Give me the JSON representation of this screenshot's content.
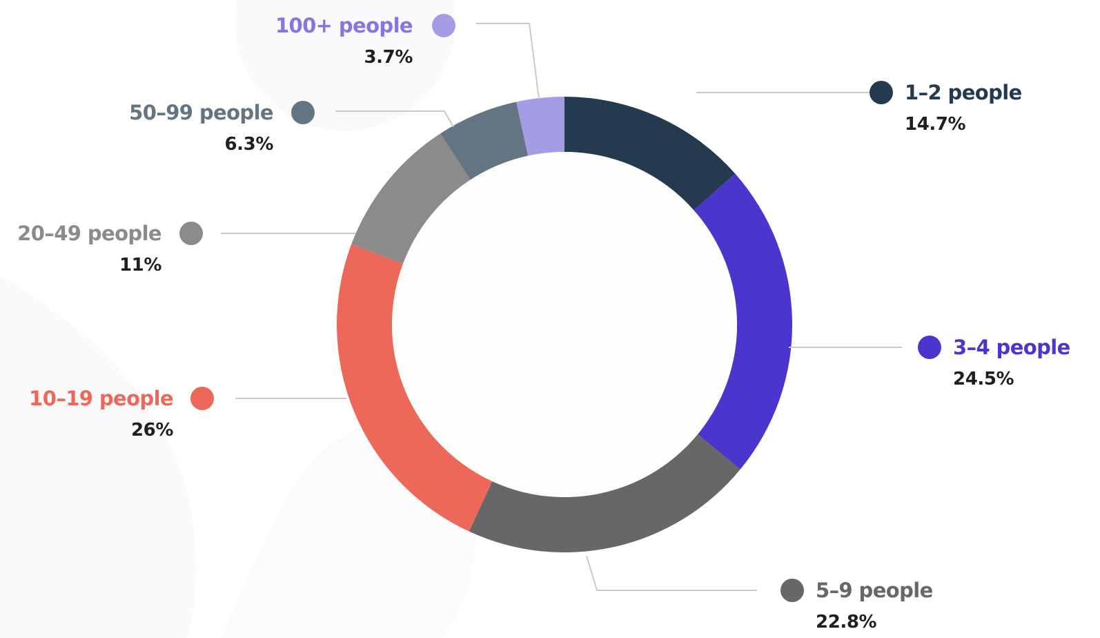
{
  "chart_data": {
    "type": "pie",
    "variant": "donut",
    "title": "",
    "categories": [
      "1–2 people",
      "3–4 people",
      "5–9 people",
      "10–19 people",
      "20–49 people",
      "50–99 people",
      "100+ people"
    ],
    "values": [
      14.7,
      24.5,
      22.8,
      26,
      11,
      6.3,
      3.7
    ],
    "value_labels": [
      "14.7%",
      "24.5%",
      "22.8%",
      "26%",
      "11%",
      "6.3%",
      "3.7%"
    ],
    "colors": [
      "#243a4f",
      "#4a36cc",
      "#676767",
      "#ec6858",
      "#8b8b8b",
      "#637483",
      "#a59ce6"
    ],
    "label_colors": [
      "#243a4f",
      "#4a36cc",
      "#676767",
      "#ec6858",
      "#8b8b8b",
      "#637483",
      "#8575e0"
    ],
    "start_angle": "12 o'clock",
    "direction": "clockwise",
    "legend": "none",
    "labels": "outside with leader lines"
  }
}
